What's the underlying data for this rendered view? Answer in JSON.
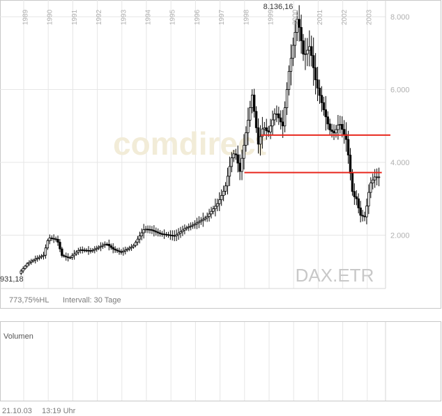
{
  "chart_data": {
    "type": "candlestick",
    "symbol": "DAX.ETR",
    "watermark": "comdirect",
    "price_axis": {
      "ylim": [
        0,
        8800
      ],
      "ticks": [
        "2.000",
        "4.000",
        "6.000",
        "8.000"
      ],
      "tick_values": [
        2000,
        4000,
        6000,
        8000
      ]
    },
    "years": [
      "1989",
      "1990",
      "1991",
      "1992",
      "1993",
      "1994",
      "1995",
      "1996",
      "1997",
      "1998",
      "1999",
      "2000",
      "2001",
      "2002",
      "2003"
    ],
    "high_label": "8.136,16",
    "low_label": "931,18",
    "performance": "773,75%HL",
    "interval": "Intervall: 30 Tage",
    "volume_label": "Volumen",
    "date": "21.10.03",
    "time": "13:19 Uhr",
    "colors": {
      "trendline": "#e8281e",
      "candle": "#000000",
      "grid": "#e6e6e6",
      "axis_text": "#b0b0b0"
    },
    "trendlines": [
      {
        "from": {
          "x": 1998.62,
          "y": 4750
        },
        "to": {
          "x": 2003.9,
          "y": 4750
        }
      },
      {
        "from": {
          "x": 1997.95,
          "y": 3720
        },
        "to": {
          "x": 2003.55,
          "y": 3720
        }
      }
    ],
    "anchors": [
      [
        1988.85,
        950
      ],
      [
        1989.2,
        1230
      ],
      [
        1989.5,
        1340
      ],
      [
        1989.85,
        1450
      ],
      [
        1990.05,
        1930
      ],
      [
        1990.4,
        1880
      ],
      [
        1990.6,
        1440
      ],
      [
        1990.9,
        1370
      ],
      [
        1991.3,
        1600
      ],
      [
        1991.8,
        1570
      ],
      [
        1992.4,
        1770
      ],
      [
        1992.7,
        1610
      ],
      [
        1993.0,
        1530
      ],
      [
        1993.5,
        1700
      ],
      [
        1993.95,
        2170
      ],
      [
        1994.2,
        2150
      ],
      [
        1994.6,
        2040
      ],
      [
        1995.2,
        1980
      ],
      [
        1995.6,
        2180
      ],
      [
        1996.0,
        2300
      ],
      [
        1996.5,
        2500
      ],
      [
        1996.95,
        2880
      ],
      [
        1997.25,
        3300
      ],
      [
        1997.5,
        4100
      ],
      [
        1997.65,
        4300
      ],
      [
        1997.85,
        3750
      ],
      [
        1998.0,
        4400
      ],
      [
        1998.35,
        5850
      ],
      [
        1998.6,
        4500
      ],
      [
        1998.8,
        5000
      ],
      [
        1999.0,
        4800
      ],
      [
        1999.3,
        5400
      ],
      [
        1999.6,
        5000
      ],
      [
        1999.85,
        6500
      ],
      [
        2000.2,
        8000
      ],
      [
        2000.45,
        6900
      ],
      [
        2000.7,
        7200
      ],
      [
        2000.95,
        6200
      ],
      [
        2001.2,
        5600
      ],
      [
        2001.5,
        4900
      ],
      [
        2001.7,
        4800
      ],
      [
        2001.9,
        5100
      ],
      [
        2002.2,
        4600
      ],
      [
        2002.45,
        3100
      ],
      [
        2002.6,
        3000
      ],
      [
        2002.75,
        2550
      ],
      [
        2002.95,
        2500
      ],
      [
        2003.15,
        3400
      ],
      [
        2003.35,
        3600
      ],
      [
        2003.45,
        3600
      ]
    ]
  }
}
